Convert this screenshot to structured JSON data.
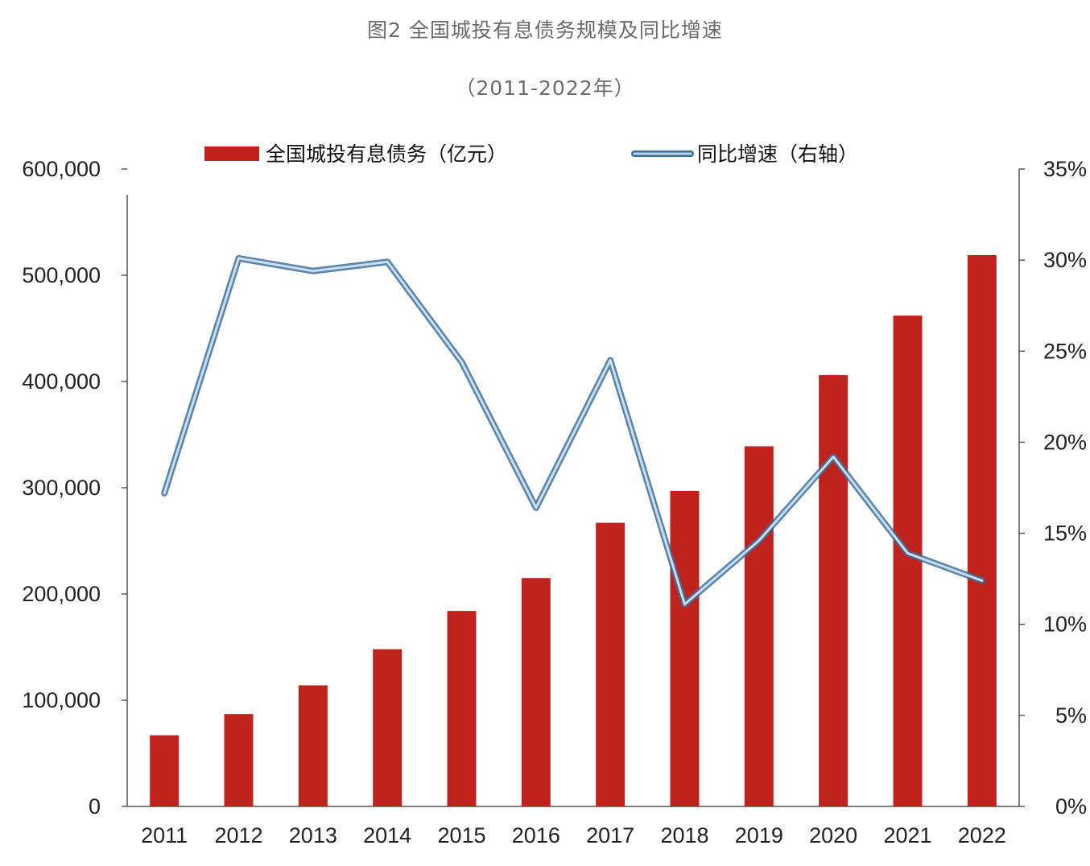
{
  "title": "图2 全国城投有息债务规模及同比增速",
  "subtitle": "（2011-2022年）",
  "chart_data": {
    "type": "bar",
    "categories": [
      "2011",
      "2012",
      "2013",
      "2014",
      "2015",
      "2016",
      "2017",
      "2018",
      "2019",
      "2020",
      "2021",
      "2022"
    ],
    "series": [
      {
        "name": "全国城投有息债务（亿元）",
        "type": "bar",
        "axis": "left",
        "color": "#c0221e",
        "values": [
          67000,
          87000,
          114000,
          148000,
          184000,
          215000,
          267000,
          297000,
          339000,
          406000,
          462000,
          519000
        ]
      },
      {
        "name": "同比增速（右轴）",
        "type": "line",
        "axis": "right",
        "color": "#6fa1c6",
        "values": [
          0.172,
          0.301,
          0.294,
          0.299,
          0.244,
          0.164,
          0.245,
          0.111,
          0.146,
          0.192,
          0.139,
          0.124
        ]
      }
    ],
    "y_left": {
      "ylim": [
        0,
        600000
      ],
      "ticks": [
        "0",
        "100,000",
        "200,000",
        "300,000",
        "400,000",
        "500,000",
        "600,000"
      ]
    },
    "y_right": {
      "ylim": [
        0,
        0.35
      ],
      "ticks": [
        "0%",
        "5%",
        "10%",
        "15%",
        "20%",
        "25%",
        "30%",
        "35%"
      ]
    },
    "legend_position": "top",
    "grid": false
  }
}
